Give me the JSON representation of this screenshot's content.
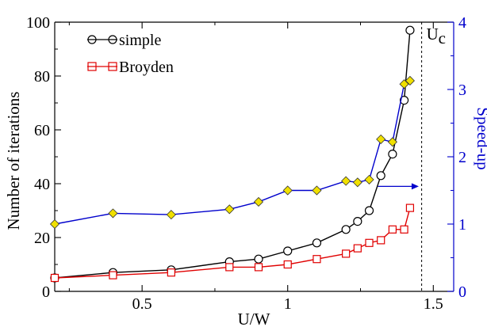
{
  "chart_data": {
    "type": "line",
    "xlabel": "U/W",
    "ylabel_left": "Number of iterations",
    "ylabel_right": "Speed-up",
    "xlim": [
      0.2,
      1.57
    ],
    "ylim_left": [
      0,
      100
    ],
    "ylim_right": [
      0,
      4
    ],
    "x_ticks": [
      "0.5",
      "1",
      "1.5"
    ],
    "x_tick_values": [
      0.5,
      1.0,
      1.5
    ],
    "y_left_ticks": [
      "0",
      "20",
      "40",
      "60",
      "80",
      "100"
    ],
    "y_left_tick_values": [
      0,
      20,
      40,
      60,
      80,
      100
    ],
    "y_right_ticks": [
      "0",
      "1",
      "2",
      "3",
      "4"
    ],
    "y_right_tick_values": [
      0,
      1,
      2,
      3,
      4
    ],
    "grid": false,
    "legend_position": "top-left",
    "series": [
      {
        "name": "simple",
        "axis": "left",
        "marker": "circle",
        "color": "#000000",
        "x": [
          0.2,
          0.4,
          0.6,
          0.8,
          0.9,
          1.0,
          1.1,
          1.2,
          1.24,
          1.28,
          1.32,
          1.36,
          1.4,
          1.42
        ],
        "y": [
          5,
          7,
          8,
          11,
          12,
          15,
          18,
          23,
          26,
          30,
          43,
          51,
          71,
          97
        ]
      },
      {
        "name": "Broyden",
        "axis": "left",
        "marker": "square",
        "color": "#e00000",
        "x": [
          0.2,
          0.4,
          0.6,
          0.8,
          0.9,
          1.0,
          1.1,
          1.2,
          1.24,
          1.28,
          1.32,
          1.36,
          1.4,
          1.42
        ],
        "y": [
          5,
          6,
          7,
          9,
          9,
          10,
          12,
          14,
          16,
          18,
          19,
          23,
          23,
          31
        ]
      },
      {
        "name": "",
        "axis": "right",
        "marker": "diamond",
        "color": "#0000cc",
        "marker_fill": "#f0e000",
        "x": [
          0.2,
          0.4,
          0.6,
          0.8,
          0.9,
          1.0,
          1.1,
          1.2,
          1.24,
          1.28,
          1.32,
          1.36,
          1.4,
          1.42
        ],
        "y": [
          1.0,
          1.16,
          1.14,
          1.22,
          1.33,
          1.5,
          1.5,
          1.64,
          1.62,
          1.66,
          2.26,
          2.22,
          3.08,
          3.13
        ]
      }
    ],
    "annotations": {
      "critical_line_x": 1.46,
      "critical_label": "U",
      "critical_label_sub": "c",
      "arrow": {
        "from_x": 1.31,
        "to_x": 1.45,
        "y_left": 39
      }
    }
  },
  "colors": {
    "left_axis": "#000000",
    "right_axis": "#0000cc"
  }
}
